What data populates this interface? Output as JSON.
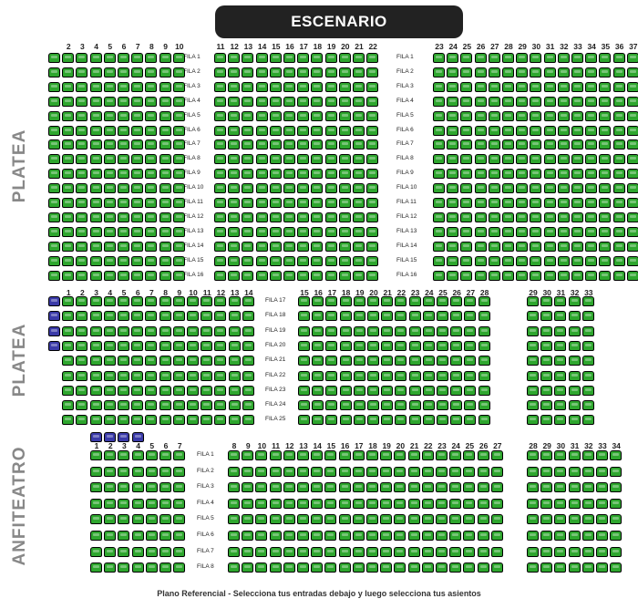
{
  "stage": {
    "label": "ESCENARIO"
  },
  "footer": {
    "text": "Plano Referencial - Selecciona tus entradas debajo y luego selecciona tus asientos"
  },
  "colors": {
    "available": "#2ea62e",
    "selected": "#3a3aa8",
    "border": "#000000"
  },
  "legend_icons": [
    "seat-icon"
  ],
  "sections": [
    {
      "id": "platea-1",
      "name": "PLATEA",
      "blocks": [
        {
          "numbers": [
            "",
            "2",
            "3",
            "4",
            "5",
            "6",
            "7",
            "8",
            "9",
            "10"
          ]
        },
        {
          "numbers": [
            "11",
            "12",
            "13",
            "14",
            "15",
            "16",
            "17",
            "18",
            "19",
            "20",
            "21",
            "22"
          ]
        },
        {
          "numbers": [
            "23",
            "24",
            "25",
            "26",
            "27",
            "28",
            "29",
            "30",
            "31",
            "32",
            "33",
            "34",
            "35",
            "36",
            "37"
          ]
        }
      ],
      "rows": [
        "FILA 1",
        "FILA 2",
        "FILA 3",
        "FILA 4",
        "FILA 5",
        "FILA 6",
        "FILA 7",
        "FILA 8",
        "FILA 9",
        "FILA 10",
        "FILA 11",
        "FILA 12",
        "FILA 13",
        "FILA 14",
        "FILA 15",
        "FILA 16"
      ],
      "selected_seats": []
    },
    {
      "id": "platea-2",
      "name": "PLATEA",
      "blocks": [
        {
          "numbers": [
            "",
            "1",
            "2",
            "3",
            "4",
            "5",
            "6",
            "7",
            "8",
            "9",
            "10",
            "11",
            "12",
            "13",
            "14"
          ]
        },
        {
          "numbers": [
            "15",
            "16",
            "17",
            "18",
            "19",
            "20",
            "21",
            "22",
            "23",
            "24",
            "25",
            "26",
            "27",
            "28"
          ]
        },
        {
          "numbers": [
            "29",
            "30",
            "31",
            "32",
            "33"
          ]
        }
      ],
      "rows": [
        "FILA 17",
        "FILA 18",
        "FILA 19",
        "FILA 20",
        "FILA 21",
        "FILA 22",
        "FILA 23",
        "FILA 24",
        "FILA 25"
      ],
      "selected_seats": [
        {
          "row": "FILA 17",
          "block": 0,
          "seat": 0
        },
        {
          "row": "FILA 18",
          "block": 0,
          "seat": 0
        },
        {
          "row": "FILA 19",
          "block": 0,
          "seat": 0
        },
        {
          "row": "FILA 20",
          "block": 0,
          "seat": 0
        }
      ]
    },
    {
      "id": "anfiteatro",
      "name": "ANFITEATRO",
      "blocks": [
        {
          "numbers": [
            "1",
            "2",
            "3",
            "4",
            "5",
            "6",
            "7"
          ]
        },
        {
          "numbers": [
            "8",
            "9",
            "10",
            "11",
            "12",
            "13",
            "14",
            "15",
            "16",
            "17",
            "18",
            "19",
            "20",
            "21",
            "22",
            "23",
            "24",
            "25",
            "26",
            "27"
          ]
        },
        {
          "numbers": [
            "28",
            "29",
            "30",
            "31",
            "32",
            "33",
            "34"
          ]
        }
      ],
      "rows": [
        "FILA 1",
        "FILA 2",
        "FILA 3",
        "FILA 4",
        "FILA 5",
        "FILA 6",
        "FILA 7",
        "FILA 8"
      ],
      "selected_seats": [
        {
          "row": "header",
          "block": 0,
          "seat": 0
        },
        {
          "row": "header",
          "block": 0,
          "seat": 1
        },
        {
          "row": "header",
          "block": 0,
          "seat": 2
        },
        {
          "row": "header",
          "block": 0,
          "seat": 3
        }
      ]
    }
  ]
}
